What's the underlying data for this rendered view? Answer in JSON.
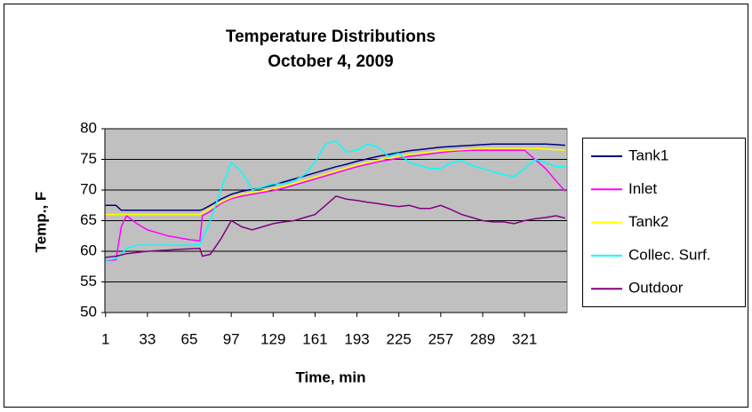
{
  "chart_data": {
    "type": "line",
    "title": "Temperature Distributions",
    "subtitle": "October 4, 2009",
    "x_label": "Time, min",
    "y_label": "Temp., F",
    "x": [
      1,
      9,
      13,
      17,
      25,
      33,
      41,
      49,
      57,
      65,
      73,
      75,
      81,
      89,
      97,
      105,
      113,
      121,
      129,
      137,
      145,
      153,
      161,
      169,
      177,
      185,
      193,
      201,
      209,
      217,
      225,
      233,
      241,
      249,
      257,
      265,
      273,
      281,
      289,
      297,
      305,
      313,
      321,
      329,
      337,
      345,
      352
    ],
    "series": [
      {
        "name": "Tank1",
        "color": "#000080",
        "values": [
          67.5,
          67.5,
          66.7,
          66.7,
          66.7,
          66.7,
          66.7,
          66.7,
          66.7,
          66.7,
          66.7,
          66.8,
          67.5,
          68.5,
          69.3,
          69.8,
          70.1,
          70.4,
          70.8,
          71.3,
          71.8,
          72.3,
          72.8,
          73.3,
          73.8,
          74.2,
          74.7,
          75.1,
          75.5,
          75.8,
          76.1,
          76.4,
          76.6,
          76.8,
          77,
          77.1,
          77.2,
          77.3,
          77.4,
          77.5,
          77.5,
          77.5,
          77.5,
          77.5,
          77.5,
          77.4,
          77.3
        ]
      },
      {
        "name": "Inlet",
        "color": "#ff00ff",
        "values": [
          58.5,
          58.6,
          64,
          65.8,
          64.5,
          63.5,
          63,
          62.5,
          62.2,
          61.9,
          61.7,
          65.8,
          66.5,
          67.8,
          68.6,
          69,
          69.3,
          69.6,
          69.9,
          70.3,
          70.8,
          71.3,
          71.8,
          72.3,
          72.8,
          73.3,
          73.8,
          74.2,
          74.6,
          74.9,
          75.2,
          75.5,
          75.7,
          75.9,
          76.1,
          76.3,
          76.4,
          76.5,
          76.5,
          76.5,
          76.5,
          76.5,
          76.5,
          75,
          73.5,
          71.5,
          69.8
        ]
      },
      {
        "name": "Tank2",
        "color": "#ffff00",
        "values": [
          66,
          66,
          66,
          66,
          66,
          66,
          66,
          66,
          66,
          66,
          66,
          66.2,
          67,
          68,
          68.8,
          69.3,
          69.6,
          69.9,
          70.2,
          70.6,
          71.1,
          71.6,
          72.1,
          72.6,
          73.1,
          73.6,
          74.1,
          74.5,
          74.9,
          75.2,
          75.5,
          75.8,
          76,
          76.2,
          76.4,
          76.5,
          76.6,
          76.7,
          76.8,
          76.8,
          76.8,
          76.8,
          76.8,
          76.8,
          76.7,
          76.6,
          76.5
        ]
      },
      {
        "name": "Collec. Surf.",
        "color": "#00ffff",
        "values": [
          58.5,
          58.8,
          59.5,
          60.5,
          61,
          61,
          61,
          61,
          61,
          61,
          61.1,
          62,
          65,
          70,
          74.5,
          73,
          70,
          70.5,
          71,
          71,
          71.5,
          72.5,
          74.5,
          77.5,
          78,
          76.2,
          76.5,
          77.5,
          77,
          75.5,
          76,
          74.5,
          74,
          73.5,
          73.5,
          74.5,
          74.8,
          74,
          73.5,
          73,
          72.5,
          72.2,
          73.5,
          75,
          74.5,
          73.8,
          73.8
        ]
      },
      {
        "name": "Outdoor",
        "color": "#800080",
        "values": [
          59,
          59.2,
          59.4,
          59.6,
          59.8,
          60,
          60.1,
          60.2,
          60.3,
          60.4,
          60.5,
          59.2,
          59.5,
          62,
          65,
          64,
          63.5,
          64,
          64.5,
          64.8,
          65,
          65.5,
          66,
          67.5,
          69,
          68.5,
          68.3,
          68,
          67.8,
          67.5,
          67.3,
          67.5,
          67,
          67,
          67.5,
          66.8,
          66,
          65.5,
          65,
          64.8,
          64.8,
          64.5,
          65,
          65.3,
          65.5,
          65.8,
          65.4
        ]
      }
    ],
    "xlim": [
      0.5,
      353.5
    ],
    "xticks": [
      1,
      33,
      65,
      97,
      129,
      161,
      193,
      225,
      257,
      289,
      321
    ],
    "ylim": [
      50,
      80
    ],
    "yticks": [
      50,
      55,
      60,
      65,
      70,
      75,
      80
    ],
    "grid": true,
    "plot_background": "#c0c0c0",
    "legend": "right"
  }
}
